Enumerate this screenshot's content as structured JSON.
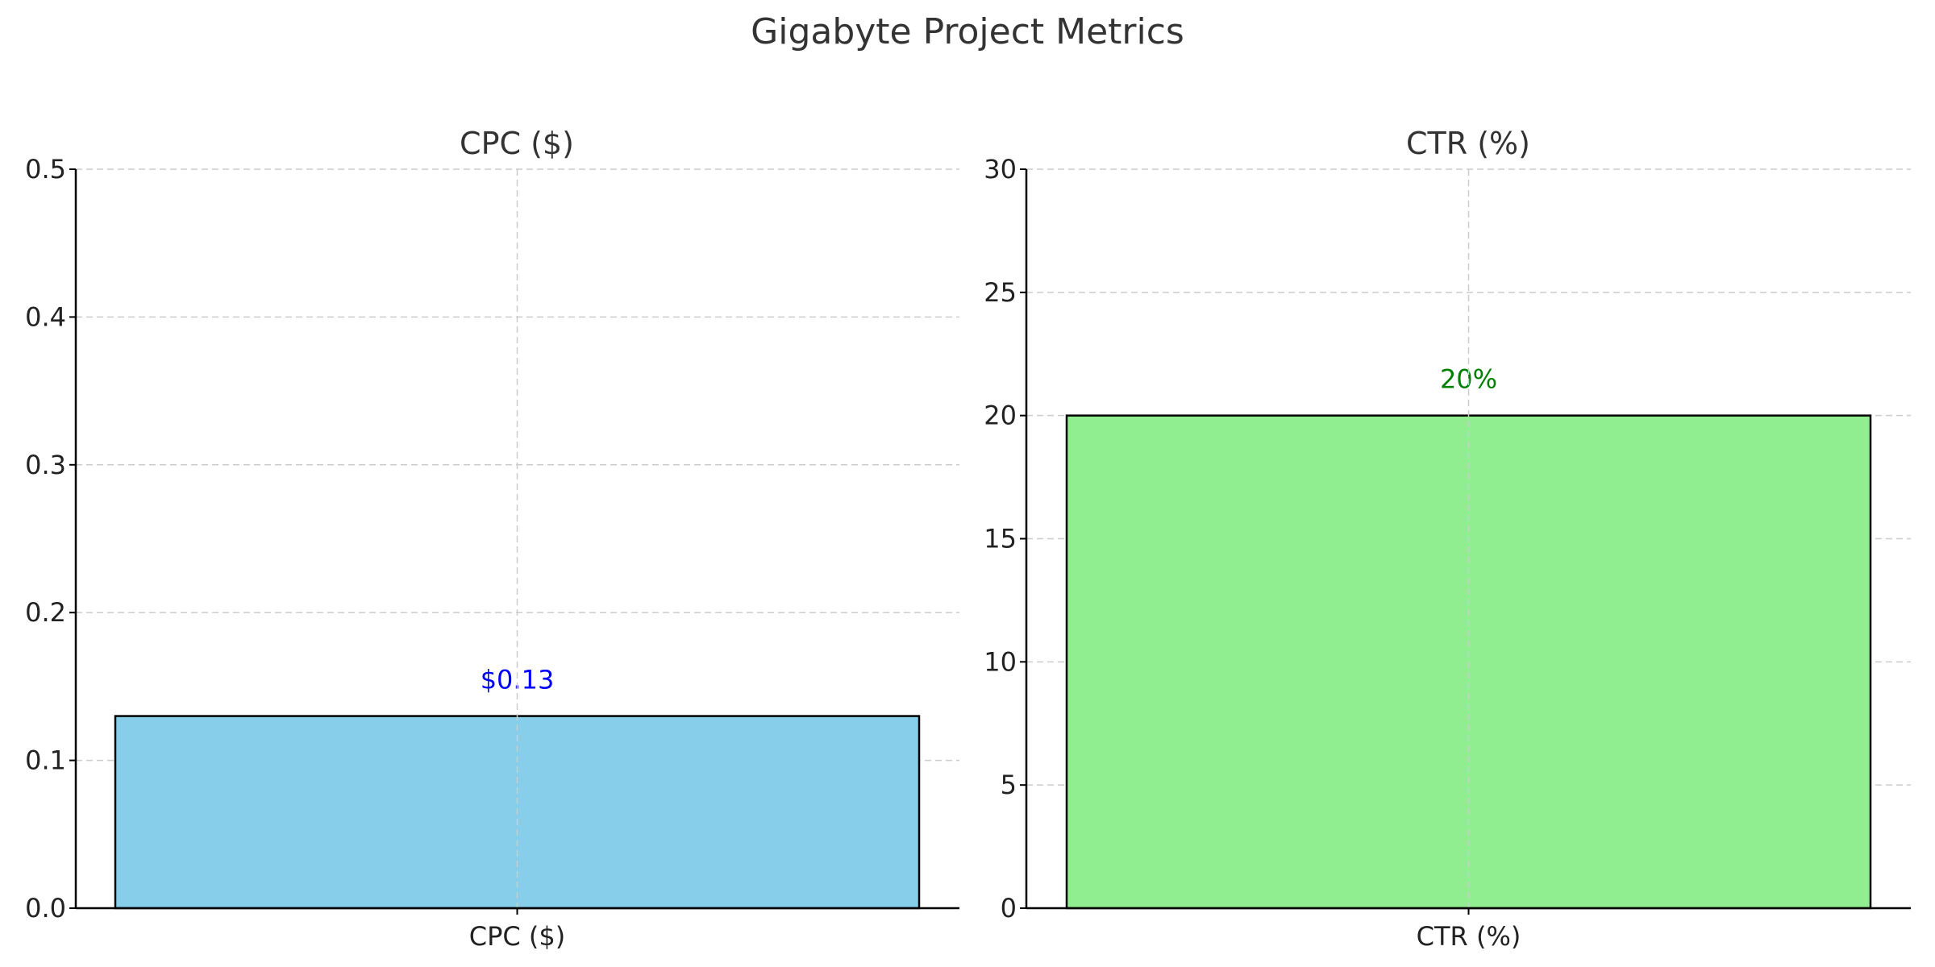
{
  "chart_data": {
    "type": "bar",
    "title": "Gigabyte Project Metrics",
    "panels": [
      {
        "title": "CPC ($)",
        "categories": [
          "CPC ($)"
        ],
        "values": [
          0.13
        ],
        "value_labels": [
          "$0.13"
        ],
        "ylim": [
          0,
          0.5
        ],
        "yticks": [
          0.0,
          0.1,
          0.2,
          0.3,
          0.4,
          0.5
        ],
        "ytick_labels": [
          "0.0",
          "0.1",
          "0.2",
          "0.3",
          "0.4",
          "0.5"
        ],
        "bar_color": "#87CEEB",
        "label_color": "#0000ff",
        "grid": true
      },
      {
        "title": "CTR (%)",
        "categories": [
          "CTR (%)"
        ],
        "values": [
          20
        ],
        "value_labels": [
          "20%"
        ],
        "ylim": [
          0,
          30
        ],
        "yticks": [
          0,
          5,
          10,
          15,
          20,
          25,
          30
        ],
        "ytick_labels": [
          "0",
          "5",
          "10",
          "15",
          "20",
          "25",
          "30"
        ],
        "bar_color": "#90EE90",
        "label_color": "#008000",
        "grid": true
      }
    ]
  }
}
